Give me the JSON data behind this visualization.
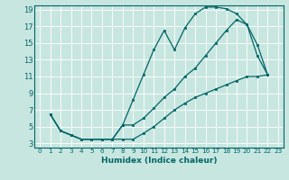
{
  "xlabel": "Humidex (Indice chaleur)",
  "bg_color": "#c8e6e0",
  "grid_color": "#ffffff",
  "line_color": "#006666",
  "xlim": [
    -0.5,
    23.5
  ],
  "ylim": [
    2.5,
    19.5
  ],
  "xticks": [
    0,
    1,
    2,
    3,
    4,
    5,
    6,
    7,
    8,
    9,
    10,
    11,
    12,
    13,
    14,
    15,
    16,
    17,
    18,
    19,
    20,
    21,
    22,
    23
  ],
  "yticks": [
    3,
    5,
    7,
    9,
    11,
    13,
    15,
    17,
    19
  ],
  "curve1_x": [
    1,
    2,
    3,
    4,
    5,
    6,
    7,
    8,
    9,
    10,
    11,
    12,
    13,
    14,
    15,
    16,
    17,
    18,
    19,
    20,
    21,
    22
  ],
  "curve1_y": [
    6.5,
    4.5,
    4.0,
    3.5,
    3.5,
    3.5,
    3.5,
    5.2,
    8.2,
    11.2,
    14.2,
    16.5,
    14.2,
    16.8,
    18.5,
    19.3,
    19.3,
    19.1,
    18.5,
    17.2,
    13.5,
    11.2
  ],
  "curve2_x": [
    1,
    2,
    3,
    4,
    5,
    6,
    7,
    8,
    9,
    10,
    11,
    12,
    13,
    14,
    15,
    16,
    17,
    18,
    19,
    20,
    21,
    22
  ],
  "curve2_y": [
    6.5,
    4.5,
    4.0,
    3.5,
    3.5,
    3.5,
    3.5,
    5.2,
    5.2,
    6.0,
    7.2,
    8.5,
    9.5,
    11.0,
    12.0,
    13.5,
    15.0,
    16.5,
    17.8,
    17.2,
    14.8,
    11.2
  ],
  "curve3_x": [
    1,
    2,
    3,
    4,
    5,
    6,
    7,
    8,
    9,
    10,
    11,
    12,
    13,
    14,
    15,
    16,
    17,
    18,
    19,
    20,
    21,
    22
  ],
  "curve3_y": [
    6.5,
    4.5,
    4.0,
    3.5,
    3.5,
    3.5,
    3.5,
    3.5,
    3.5,
    4.2,
    5.0,
    6.0,
    7.0,
    7.8,
    8.5,
    9.0,
    9.5,
    10.0,
    10.5,
    11.0,
    11.0,
    11.2
  ],
  "xlabel_fontsize": 6.5,
  "tick_fontsize_x": 5.2,
  "tick_fontsize_y": 6.0,
  "linewidth": 0.9,
  "markersize": 2.0
}
